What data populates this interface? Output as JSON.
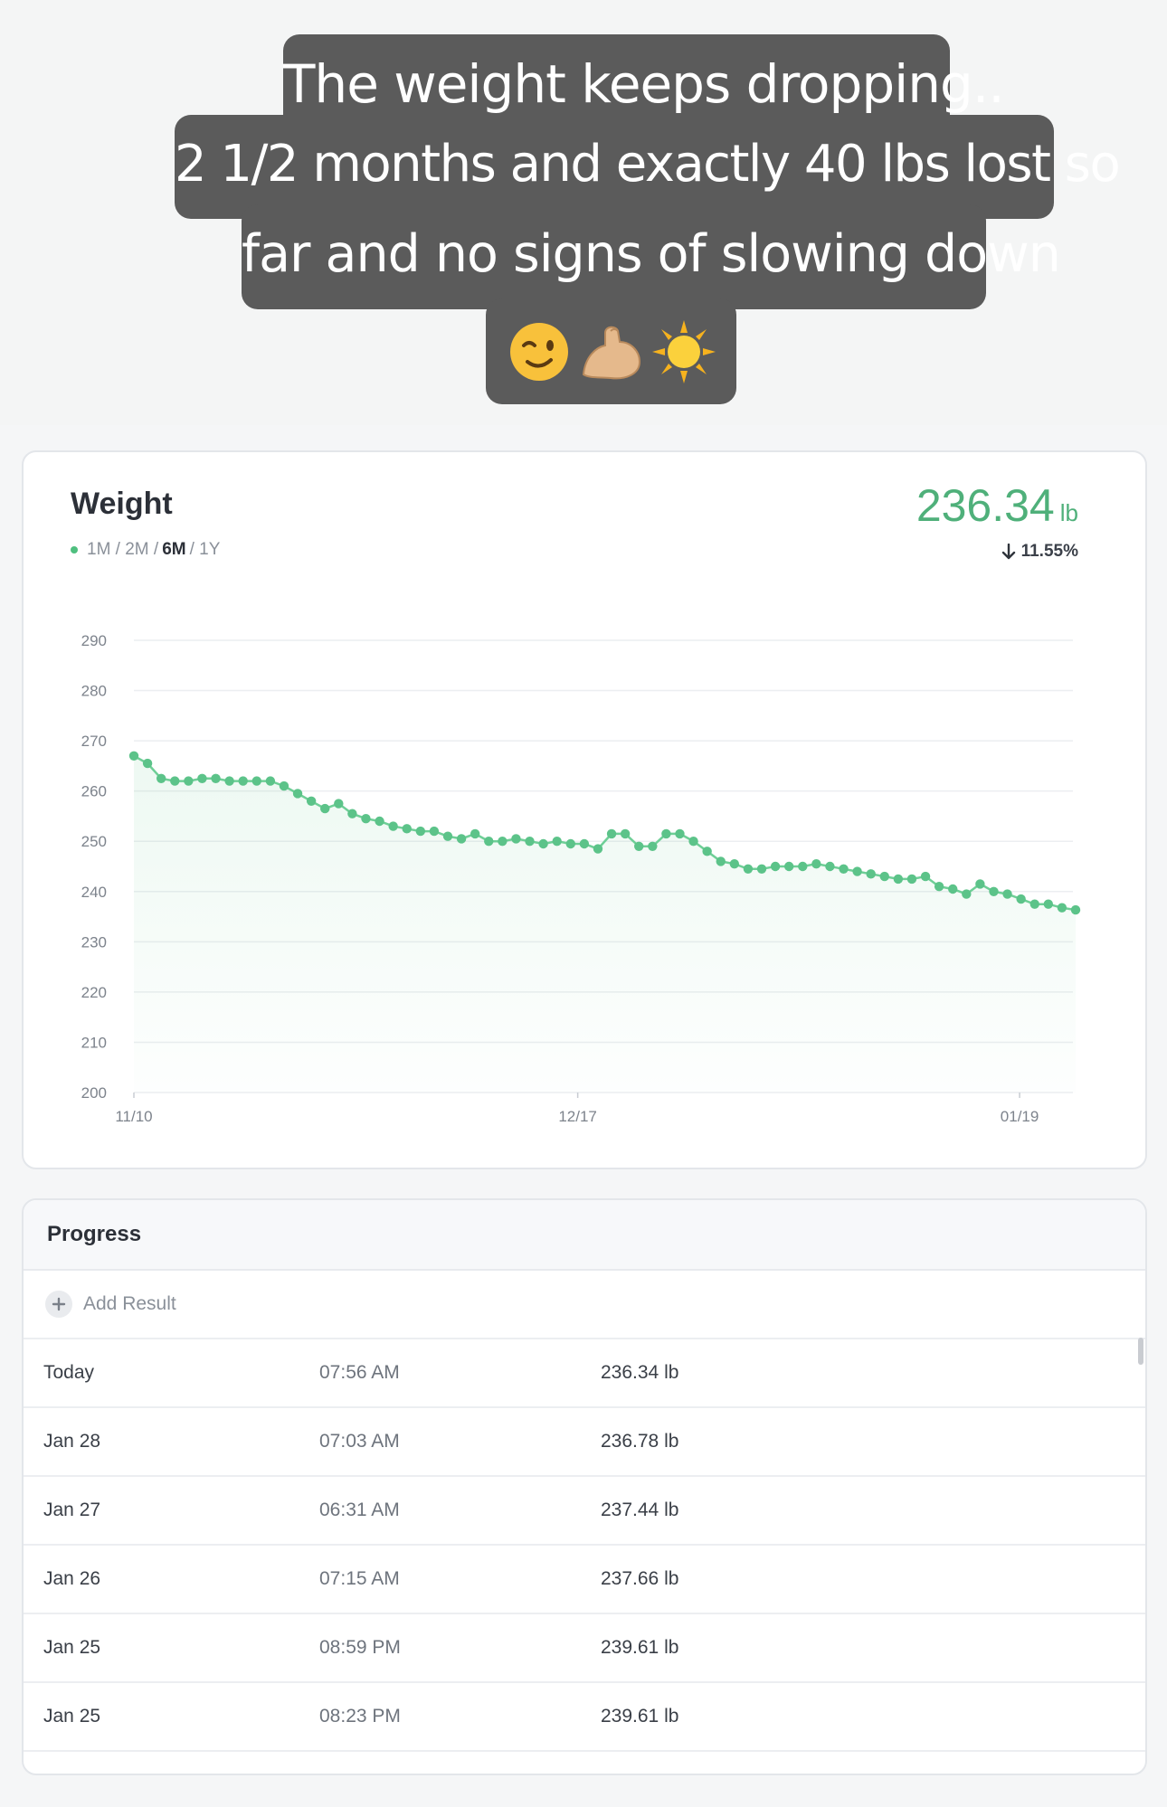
{
  "caption": {
    "line1": "The weight keeps dropping..",
    "line2": "2 1/2 months and exactly 40 lbs lost so",
    "line3": "far and no signs of slowing down",
    "emojis": [
      "winking-face",
      "flexed-biceps",
      "sun"
    ]
  },
  "weight": {
    "title": "Weight",
    "range_prefix": "1M / 2M /",
    "range_active": "6M",
    "range_suffix": "/ 1Y",
    "current_value": "236.34",
    "unit": "lb",
    "change": "11.55%",
    "accent_color": "#4fb07a"
  },
  "chart_data": {
    "type": "area",
    "title": "",
    "xlabel": "",
    "ylabel": "",
    "ylim": [
      200,
      290
    ],
    "yticks": [
      290,
      280,
      270,
      260,
      250,
      240,
      230,
      220,
      210,
      200
    ],
    "xticks": [
      "11/10",
      "12/17",
      "01/19"
    ],
    "grid": true,
    "series": [
      {
        "values": [
          267,
          265.5,
          262.5,
          262,
          262,
          262.5,
          262.5,
          262,
          262,
          262,
          262,
          261,
          259.5,
          258,
          256.5,
          257.5,
          255.5,
          254.5,
          254,
          253,
          252.5,
          252,
          252,
          251,
          250.5,
          251.5,
          250,
          250,
          250.5,
          250,
          249.5,
          250,
          249.5,
          249.5,
          248.5,
          251.5,
          251.5,
          249,
          249,
          251.5,
          251.5,
          250,
          248,
          246,
          245.5,
          244.5,
          244.5,
          245,
          245,
          245,
          245.5,
          245,
          244.5,
          244,
          243.5,
          243,
          242.5,
          242.5,
          243,
          241,
          240.5,
          239.5,
          241.5,
          240,
          239.5,
          238.5,
          237.5,
          237.5,
          236.78,
          236.34
        ]
      }
    ]
  },
  "progress": {
    "title": "Progress",
    "add_label": "Add Result",
    "rows": [
      {
        "date": "Today",
        "time": "07:56 AM",
        "value": "236.34 lb"
      },
      {
        "date": "Jan 28",
        "time": "07:03 AM",
        "value": "236.78 lb"
      },
      {
        "date": "Jan 27",
        "time": "06:31 AM",
        "value": "237.44 lb"
      },
      {
        "date": "Jan 26",
        "time": "07:15 AM",
        "value": "237.66 lb"
      },
      {
        "date": "Jan 25",
        "time": "08:59 PM",
        "value": "239.61 lb"
      },
      {
        "date": "Jan 25",
        "time": "08:23 PM",
        "value": "239.61 lb"
      }
    ]
  }
}
